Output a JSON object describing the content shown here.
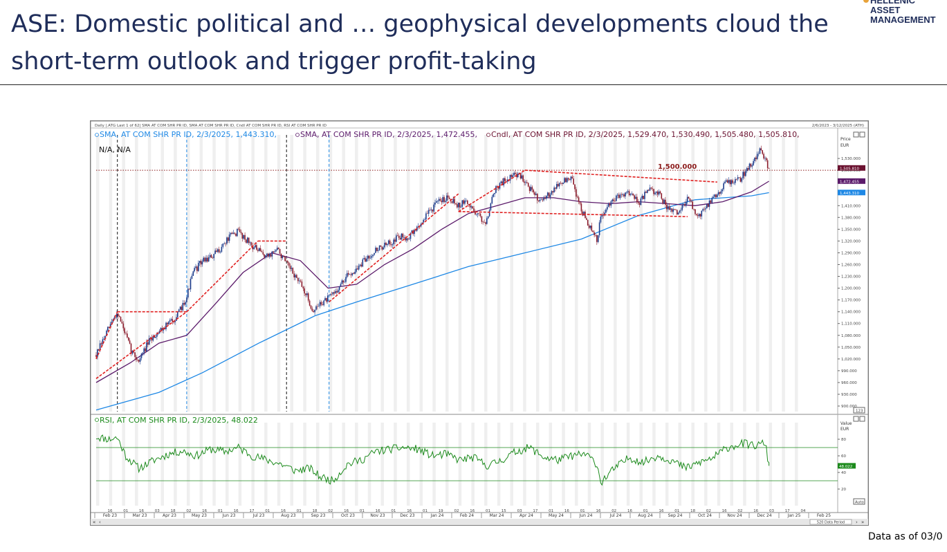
{
  "page": {
    "title_line1": "ASE: Domestic political and … geophysical developments cloud the",
    "title_line2": "short-term outlook and trigger profit-taking",
    "logo": {
      "line1": "HELLENIC",
      "line2": "ASSET",
      "line3": "MANAGEMENT",
      "accent": "#e8a33a"
    },
    "footer": "Data as of 03/0",
    "colors": {
      "title": "#1f2d5a",
      "sma_long": "#1e88e5",
      "sma_short": "#5b1a6a",
      "candle": "#6b1230",
      "rsi": "#1b8a1b",
      "trend": "#e02020"
    }
  },
  "chart_data": [
    {
      "type": "line",
      "panel": "price",
      "header_small": "Daily |.ATG Last 1 of 62| SMA AT COM SHR PR ID, SMA AT COM SHR PR ID, Cndl AT COM SHR PR ID, RSI AT COM SHR PR ID",
      "header_range": "2/6/2023 - 3/12/2025 (ATH)",
      "legend": [
        {
          "label": "SMA, AT COM SHR PR ID, 2/3/2025, 1,443.310,",
          "color": "#1e88e5"
        },
        {
          "label": "SMA, AT COM SHR PR ID, 2/3/2025, 1,472.455,",
          "color": "#5b1a6a"
        },
        {
          "label": "Cndl, AT COM SHR PR ID, 2/3/2025, 1,529.470, 1,530.490, 1,505.480, 1,505.810,",
          "color": "#6b1230"
        }
      ],
      "legend_line2": "N/A, N/A",
      "axis_title": "Price",
      "axis_unit": "EUR",
      "ylim": [
        886,
        1590
      ],
      "yticks": [
        900,
        930,
        960,
        990,
        1020,
        1050,
        1080,
        1110,
        1140,
        1170,
        1200,
        1230,
        1260,
        1290,
        1320,
        1350,
        1380,
        1410,
        1440,
        1470,
        1500,
        1530
      ],
      "ytick_labels": [
        "900.000",
        "930.000",
        "960.000",
        "990.000",
        "1,020.000",
        "1,050.000",
        "1,080.000",
        "1,110.000",
        "1,140.000",
        "1,170.000",
        "1,200.000",
        "1,230.000",
        "1,260.000",
        "1,290.000",
        "1,320.000",
        "1,350.000",
        "1,380.000",
        "1,410.000",
        "1,440.000",
        "1,470.000",
        "1,500.000",
        "1,530.000"
      ],
      "price_tags": [
        {
          "label": "1,505.810",
          "value": 1505.81,
          "color": "#6b1230"
        },
        {
          "label": "1,472.455",
          "value": 1472.455,
          "color": "#5b1a6a"
        },
        {
          "label": "1,443.310",
          "value": 1443.31,
          "color": "#1e88e5"
        }
      ],
      "corner_box": "123",
      "reference_line": {
        "value": 1500,
        "label": "1,500.000"
      },
      "x_start": "2023-02-06",
      "x_end": "2025-03-12",
      "series": [
        {
          "name": "Cndl",
          "x": [
            "2023-02-06",
            "2023-02-20",
            "2023-03-01",
            "2023-03-10",
            "2023-03-16",
            "2023-03-24",
            "2023-04-03",
            "2023-04-14",
            "2023-04-25",
            "2023-05-05",
            "2023-05-15",
            "2023-05-22",
            "2023-06-01",
            "2023-06-12",
            "2023-06-20",
            "2023-06-30",
            "2023-07-10",
            "2023-07-20",
            "2023-07-31",
            "2023-08-10",
            "2023-08-21",
            "2023-08-31",
            "2023-09-11",
            "2023-09-20",
            "2023-09-29",
            "2023-10-06",
            "2023-10-16",
            "2023-10-26",
            "2023-11-06",
            "2023-11-16",
            "2023-11-27",
            "2023-12-07",
            "2023-12-18",
            "2023-12-29",
            "2024-01-10",
            "2024-01-22",
            "2024-02-01",
            "2024-02-12",
            "2024-02-22",
            "2024-03-04",
            "2024-03-12",
            "2024-03-22",
            "2024-04-02",
            "2024-04-12",
            "2024-04-23",
            "2024-05-06",
            "2024-05-15",
            "2024-05-24",
            "2024-06-04",
            "2024-06-13",
            "2024-06-24",
            "2024-07-04",
            "2024-07-15",
            "2024-07-25",
            "2024-08-01",
            "2024-08-05",
            "2024-08-14",
            "2024-08-26",
            "2024-09-05",
            "2024-09-16",
            "2024-09-26",
            "2024-10-07",
            "2024-10-17",
            "2024-10-28",
            "2024-11-07",
            "2024-11-18",
            "2024-11-28",
            "2024-12-09",
            "2024-12-18",
            "2025-01-02",
            "2025-01-14",
            "2025-01-24",
            "2025-02-03"
          ],
          "values": [
            1030,
            1100,
            1140,
            1080,
            1040,
            1015,
            1060,
            1090,
            1110,
            1130,
            1180,
            1240,
            1270,
            1280,
            1300,
            1330,
            1345,
            1320,
            1295,
            1280,
            1300,
            1260,
            1225,
            1190,
            1140,
            1160,
            1175,
            1200,
            1235,
            1250,
            1280,
            1300,
            1310,
            1330,
            1330,
            1360,
            1395,
            1420,
            1435,
            1410,
            1420,
            1395,
            1365,
            1450,
            1475,
            1490,
            1475,
            1440,
            1420,
            1450,
            1470,
            1480,
            1400,
            1350,
            1320,
            1380,
            1410,
            1440,
            1445,
            1420,
            1450,
            1440,
            1400,
            1390,
            1430,
            1380,
            1410,
            1440,
            1470,
            1475,
            1515,
            1550,
            1506
          ]
        },
        {
          "name": "SMA",
          "x": [
            "2023-02-06",
            "2023-04-15",
            "2023-06-01",
            "2023-08-01",
            "2023-10-01",
            "2023-11-15",
            "2024-01-15",
            "2024-03-15",
            "2024-05-15",
            "2024-07-15",
            "2024-09-15",
            "2024-11-15",
            "2025-01-15",
            "2025-02-03"
          ],
          "values": [
            890,
            935,
            985,
            1060,
            1130,
            1165,
            1210,
            1255,
            1290,
            1325,
            1385,
            1425,
            1435,
            1443
          ]
        },
        {
          "name": "SMA",
          "x": [
            "2023-02-06",
            "2023-03-15",
            "2023-04-15",
            "2023-05-15",
            "2023-06-15",
            "2023-07-15",
            "2023-08-15",
            "2023-09-15",
            "2023-10-15",
            "2023-11-15",
            "2023-12-15",
            "2024-01-15",
            "2024-02-15",
            "2024-03-15",
            "2024-04-15",
            "2024-05-15",
            "2024-06-15",
            "2024-07-15",
            "2024-08-15",
            "2024-09-15",
            "2024-10-15",
            "2024-11-15",
            "2024-12-15",
            "2025-01-15",
            "2025-02-03"
          ],
          "values": [
            960,
            1010,
            1060,
            1080,
            1160,
            1240,
            1290,
            1270,
            1200,
            1210,
            1260,
            1300,
            1350,
            1390,
            1410,
            1430,
            1430,
            1420,
            1415,
            1420,
            1415,
            1410,
            1420,
            1445,
            1472
          ]
        }
      ],
      "trendlines": [
        {
          "x": [
            "2023-02-06",
            "2023-03-01"
          ],
          "values": [
            1020,
            1140
          ]
        },
        {
          "x": [
            "2023-03-01",
            "2023-05-15"
          ],
          "values": [
            1140,
            1140
          ]
        },
        {
          "x": [
            "2023-02-06",
            "2023-05-15"
          ],
          "values": [
            970,
            1140
          ]
        },
        {
          "x": [
            "2023-05-15",
            "2023-07-31"
          ],
          "values": [
            1140,
            1320
          ]
        },
        {
          "x": [
            "2023-07-31",
            "2023-08-31"
          ],
          "values": [
            1320,
            1320
          ]
        },
        {
          "x": [
            "2023-10-16",
            "2024-03-04"
          ],
          "values": [
            1165,
            1440
          ]
        },
        {
          "x": [
            "2024-03-04",
            "2024-05-15"
          ],
          "values": [
            1395,
            1500
          ]
        },
        {
          "x": [
            "2024-05-15",
            "2024-12-09"
          ],
          "values": [
            1500,
            1470
          ]
        },
        {
          "x": [
            "2024-03-04",
            "2024-11-07"
          ],
          "values": [
            1395,
            1382
          ]
        }
      ],
      "vlines": [
        {
          "x": "2023-03-01",
          "style": "black"
        },
        {
          "x": "2023-05-15",
          "style": "blue"
        },
        {
          "x": "2023-08-31",
          "style": "black"
        },
        {
          "x": "2023-10-16",
          "style": "blue"
        }
      ],
      "xtick_days": [
        "16",
        "01",
        "16",
        "03",
        "18",
        "02",
        "16",
        "01",
        "16",
        "17",
        "01",
        "16",
        "01",
        "18",
        "02",
        "16",
        "01",
        "16",
        "01",
        "16",
        "01",
        "19",
        "02",
        "16",
        "01",
        "15",
        "03",
        "17",
        "01",
        "16",
        "01",
        "16",
        "02",
        "16",
        "01",
        "16",
        "01",
        "18",
        "02",
        "16",
        "02",
        "16",
        "03",
        "17",
        "04"
      ],
      "xtick_months": [
        "Feb 23",
        "Mar 23",
        "Apr 23",
        "May 23",
        "Jun 23",
        "Jul 23",
        "Aug 23",
        "Sep 23",
        "Oct 23",
        "Nov 23",
        "Dec 23",
        "Jan 24",
        "Feb 24",
        "Mar 24",
        "Apr 24",
        "May 24",
        "Jun 24",
        "Jul 24",
        "Aug 24",
        "Sep 24",
        "Oct 24",
        "Nov 24",
        "Dec 24",
        "Jan 25",
        "Feb 25"
      ],
      "status": "520 Data Period"
    },
    {
      "type": "line",
      "panel": "rsi",
      "legend": [
        {
          "label": "RSI, AT COM SHR PR ID, 2/3/2025, 48.022",
          "color": "#1b8a1b"
        }
      ],
      "axis_title": "Value",
      "axis_unit": "EUR",
      "ylim": [
        0,
        100
      ],
      "yticks": [
        20,
        40,
        60,
        80
      ],
      "ytick_labels": [
        "20",
        "40",
        "60",
        "80"
      ],
      "hlines": [
        30,
        70
      ],
      "last_value": "48.022",
      "auto_label": "Auto",
      "series": [
        {
          "name": "RSI",
          "x": [
            "2023-02-06",
            "2023-02-20",
            "2023-03-01",
            "2023-03-10",
            "2023-03-24",
            "2023-04-10",
            "2023-04-25",
            "2023-05-10",
            "2023-05-25",
            "2023-06-10",
            "2023-06-25",
            "2023-07-10",
            "2023-07-25",
            "2023-08-10",
            "2023-08-25",
            "2023-09-10",
            "2023-09-25",
            "2023-10-06",
            "2023-10-20",
            "2023-11-05",
            "2023-11-20",
            "2023-12-05",
            "2023-12-20",
            "2024-01-05",
            "2024-01-20",
            "2024-02-05",
            "2024-02-20",
            "2024-03-05",
            "2024-03-20",
            "2024-04-05",
            "2024-04-20",
            "2024-05-05",
            "2024-05-20",
            "2024-06-05",
            "2024-06-20",
            "2024-07-05",
            "2024-07-20",
            "2024-08-01",
            "2024-08-05",
            "2024-08-20",
            "2024-09-05",
            "2024-09-20",
            "2024-10-05",
            "2024-10-20",
            "2024-11-05",
            "2024-11-20",
            "2024-12-05",
            "2024-12-20",
            "2025-01-05",
            "2025-01-20",
            "2025-01-30",
            "2025-02-03"
          ],
          "values": [
            83,
            80,
            82,
            60,
            45,
            55,
            62,
            66,
            60,
            68,
            65,
            70,
            60,
            55,
            50,
            42,
            45,
            35,
            30,
            50,
            55,
            65,
            68,
            70,
            68,
            60,
            62,
            55,
            58,
            48,
            55,
            65,
            70,
            58,
            55,
            60,
            62,
            50,
            28,
            45,
            58,
            52,
            60,
            55,
            45,
            52,
            58,
            70,
            75,
            72,
            76,
            48
          ]
        }
      ]
    }
  ]
}
